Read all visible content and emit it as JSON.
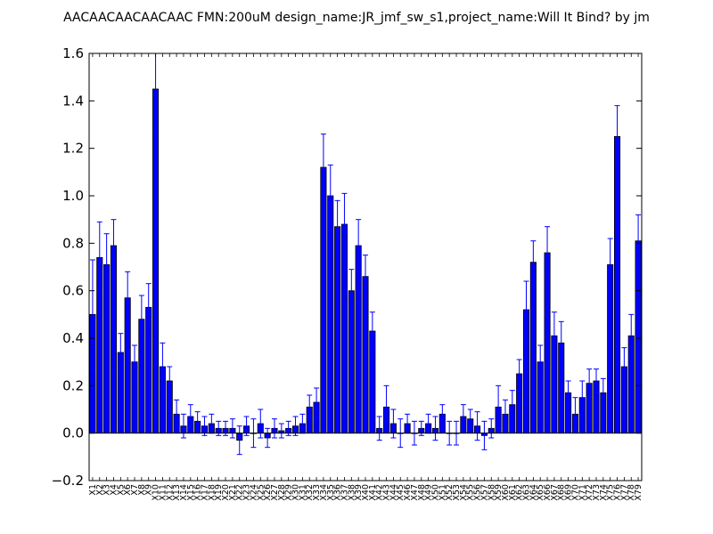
{
  "chart_data": {
    "type": "bar",
    "title": "AACAACAACAACAAC  FMN:200uM  design_name:JR_jmf_sw_s1,project_name:Will It Bind? by jm",
    "xlabel": "",
    "ylabel": "",
    "ylim": [
      -0.2,
      1.6
    ],
    "yticks": [
      "−0.2",
      "0.0",
      "0.2",
      "0.4",
      "0.6",
      "0.8",
      "1.0",
      "1.2",
      "1.4",
      "1.6"
    ],
    "grid": false,
    "legend": "none",
    "bar_color": "#0000ff",
    "error_bar_color": "#0000ff",
    "categories": [
      "X1",
      "X2",
      "X3",
      "X4",
      "X5",
      "X6",
      "X7",
      "X8",
      "X9",
      "X10",
      "X11",
      "X12",
      "X13",
      "X14",
      "X15",
      "X16",
      "X17",
      "X18",
      "X19",
      "X20",
      "X21",
      "X22",
      "X23",
      "X24",
      "X25",
      "X26",
      "X27",
      "X28",
      "X29",
      "X30",
      "X31",
      "X32",
      "X33",
      "X34",
      "X35",
      "X36",
      "X37",
      "X38",
      "X39",
      "X40",
      "X41",
      "X42",
      "X43",
      "X44",
      "X45",
      "X46",
      "X47",
      "X48",
      "X49",
      "X50",
      "X51",
      "X52",
      "X53",
      "X54",
      "X55",
      "X56",
      "X57",
      "X58",
      "X59",
      "X60",
      "X61",
      "X62",
      "X63",
      "X64",
      "X65",
      "X66",
      "X67",
      "X68",
      "X69",
      "X70",
      "X71",
      "X72",
      "X73",
      "X74",
      "X75",
      "X76",
      "X77",
      "X78",
      "X79"
    ],
    "values": [
      0.5,
      0.74,
      0.71,
      0.79,
      0.34,
      0.57,
      0.3,
      0.48,
      0.53,
      1.45,
      0.28,
      0.22,
      0.08,
      0.03,
      0.07,
      0.05,
      0.03,
      0.04,
      0.02,
      0.02,
      0.02,
      -0.03,
      0.03,
      0.0,
      0.04,
      -0.02,
      0.02,
      0.01,
      0.02,
      0.03,
      0.04,
      0.11,
      0.13,
      1.12,
      1.0,
      0.87,
      0.88,
      0.6,
      0.79,
      0.66,
      0.43,
      0.02,
      0.11,
      0.04,
      0.0,
      0.04,
      0.0,
      0.02,
      0.04,
      0.02,
      0.08,
      0.0,
      0.0,
      0.07,
      0.06,
      0.03,
      -0.01,
      0.02,
      0.11,
      0.08,
      0.12,
      0.25,
      0.52,
      0.72,
      0.3,
      0.76,
      0.41,
      0.38,
      0.17,
      0.08,
      0.15,
      0.21,
      0.22,
      0.17,
      0.71,
      1.25,
      0.28,
      0.41,
      0.81
    ],
    "errors": [
      0.23,
      0.15,
      0.13,
      0.11,
      0.08,
      0.11,
      0.07,
      0.1,
      0.1,
      0.18,
      0.1,
      0.06,
      0.06,
      0.05,
      0.05,
      0.04,
      0.04,
      0.04,
      0.03,
      0.03,
      0.04,
      0.06,
      0.04,
      0.06,
      0.06,
      0.04,
      0.04,
      0.03,
      0.03,
      0.04,
      0.04,
      0.05,
      0.06,
      0.14,
      0.13,
      0.11,
      0.13,
      0.09,
      0.11,
      0.09,
      0.08,
      0.05,
      0.09,
      0.06,
      0.06,
      0.04,
      0.05,
      0.03,
      0.04,
      0.05,
      0.04,
      0.05,
      0.05,
      0.05,
      0.04,
      0.06,
      0.06,
      0.04,
      0.09,
      0.06,
      0.06,
      0.06,
      0.12,
      0.09,
      0.07,
      0.11,
      0.1,
      0.09,
      0.05,
      0.07,
      0.07,
      0.06,
      0.05,
      0.06,
      0.11,
      0.13,
      0.08,
      0.09,
      0.11
    ]
  }
}
